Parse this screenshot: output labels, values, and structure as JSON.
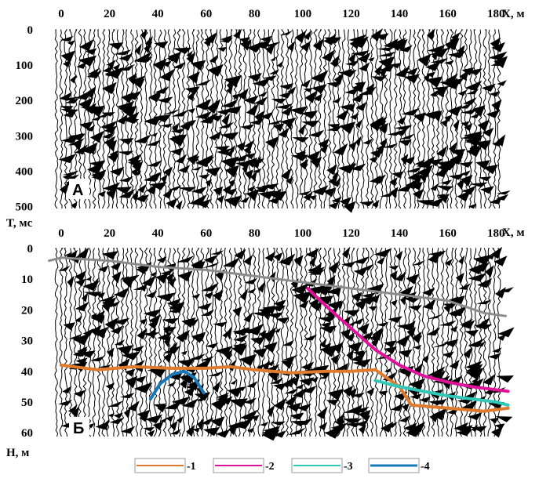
{
  "chart_data": [
    {
      "panel": "A",
      "type": "seismic-section",
      "x_ticks": [
        "0",
        "20",
        "40",
        "60",
        "80",
        "100",
        "120",
        "140",
        "160",
        "180"
      ],
      "x_label": "X, м",
      "y_ticks": [
        "0",
        "100",
        "200",
        "300",
        "400",
        "500"
      ],
      "y_label": "T, мс",
      "xlim": [
        0,
        190
      ],
      "ylim": [
        0,
        510
      ],
      "tag": "А"
    },
    {
      "panel": "Б",
      "type": "seismic-section",
      "x_ticks": [
        "0",
        "20",
        "40",
        "60",
        "80",
        "100",
        "120",
        "140",
        "160",
        "180"
      ],
      "x_label": "X, м",
      "y_ticks": [
        "0",
        "10",
        "20",
        "30",
        "40",
        "50",
        "60"
      ],
      "y_label": "H, м",
      "xlim": [
        0,
        190
      ],
      "ylim": [
        0,
        62
      ],
      "tag": "Б",
      "lines": [
        {
          "id": "surface",
          "color": "#8c8c8c",
          "points": [
            [
              -5,
              4
            ],
            [
              0,
              3
            ],
            [
              20,
              4
            ],
            [
              40,
              6
            ],
            [
              60,
              7
            ],
            [
              80,
              9
            ],
            [
              100,
              11
            ],
            [
              120,
              13
            ],
            [
              140,
              15
            ],
            [
              160,
              17
            ],
            [
              175,
              21
            ],
            [
              184,
              22
            ]
          ]
        },
        {
          "id": "1",
          "color": "#e07b2e",
          "points": [
            [
              0,
              38
            ],
            [
              15,
              39.5
            ],
            [
              30,
              38.5
            ],
            [
              45,
              39
            ],
            [
              60,
              39
            ],
            [
              70,
              38.5
            ],
            [
              80,
              39.5
            ],
            [
              95,
              40.5
            ],
            [
              110,
              40
            ],
            [
              120,
              40
            ],
            [
              130,
              39.5
            ],
            [
              140,
              45
            ],
            [
              145,
              51
            ],
            [
              160,
              52
            ],
            [
              175,
              53
            ],
            [
              185,
              52
            ]
          ]
        },
        {
          "id": "2",
          "color": "#e0129a",
          "points": [
            [
              102,
              13
            ],
            [
              110,
              19
            ],
            [
              120,
              26
            ],
            [
              130,
              33
            ],
            [
              140,
              38
            ],
            [
              150,
              41.5
            ],
            [
              160,
              43.5
            ],
            [
              170,
              45
            ],
            [
              180,
              46
            ],
            [
              185,
              46.5
            ]
          ]
        },
        {
          "id": "3",
          "color": "#30c8b8",
          "points": [
            [
              130,
              43
            ],
            [
              140,
              45
            ],
            [
              150,
              46.5
            ],
            [
              160,
              48
            ],
            [
              170,
              49
            ],
            [
              180,
              50
            ],
            [
              185,
              51
            ]
          ]
        },
        {
          "id": "4",
          "color": "#1878b8",
          "points": [
            [
              37,
              49
            ],
            [
              41,
              44
            ],
            [
              46,
              41
            ],
            [
              51,
              40
            ],
            [
              55,
              42
            ],
            [
              59,
              47
            ]
          ]
        }
      ]
    }
  ],
  "legend": [
    {
      "color": "#e07b2e",
      "label": "-1"
    },
    {
      "color": "#e0129a",
      "label": "-2"
    },
    {
      "color": "#30c8b8",
      "label": "-3"
    },
    {
      "color": "#1878b8",
      "label": "-4"
    }
  ]
}
